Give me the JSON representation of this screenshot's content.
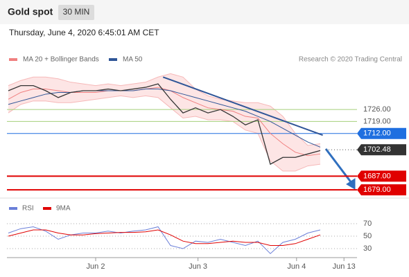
{
  "header": {
    "title": "Gold spot",
    "interval": "30 MIN"
  },
  "chart_data": {
    "type": "line",
    "timestamp": "Thursday, June 4, 2020 6:45:01 AM CET",
    "credit": "Research © 2020 Trading Central",
    "ylim": [
      1675,
      1752
    ],
    "xticks": [
      {
        "value": 7,
        "label": "Jun 2"
      },
      {
        "value": 15.2,
        "label": "Jun 3"
      },
      {
        "value": 23.1,
        "label": "Jun 4"
      },
      {
        "value": 26.9,
        "label": "Jun 13"
      }
    ],
    "price": {
      "color": "#333333",
      "values": [
        1737,
        1740,
        1740,
        1737,
        1733,
        1736,
        1737,
        1737,
        1738,
        1737,
        1738,
        1739,
        1741,
        1732,
        1724,
        1727,
        1724,
        1726,
        1722,
        1717,
        1720,
        1694,
        1698,
        1698,
        1700,
        1702
      ]
    },
    "series": [
      {
        "name": "MA 20 + Bollinger Bands",
        "color": "#f08080",
        "values": [
          1732,
          1736,
          1738,
          1738,
          1737,
          1736,
          1736,
          1736,
          1737,
          1737,
          1737,
          1738,
          1739,
          1737,
          1733,
          1730,
          1727,
          1726,
          1725,
          1722,
          1721,
          1712,
          1706,
          1701,
          1699,
          1700
        ],
        "upper": [
          1740,
          1743,
          1745,
          1745,
          1744,
          1742,
          1741,
          1740,
          1741,
          1740,
          1741,
          1742,
          1745,
          1747,
          1745,
          1738,
          1734,
          1732,
          1731,
          1730,
          1730,
          1728,
          1722,
          1712,
          1705,
          1706
        ],
        "lower": [
          1724,
          1729,
          1731,
          1731,
          1730,
          1730,
          1731,
          1732,
          1733,
          1734,
          1733,
          1734,
          1733,
          1727,
          1721,
          1722,
          1720,
          1720,
          1719,
          1714,
          1712,
          1696,
          1690,
          1690,
          1693,
          1694
        ]
      },
      {
        "name": "MA 50",
        "color": "#2f5597",
        "values": [
          1729,
          1731,
          1733,
          1735,
          1736,
          1736,
          1737,
          1737,
          1737,
          1737,
          1737,
          1738,
          1738,
          1737,
          1735,
          1733,
          1731,
          1729,
          1727,
          1725,
          1722,
          1719,
          1715,
          1711,
          1707,
          1704
        ]
      }
    ],
    "trendline": {
      "x": [
        12.4,
        25.2
      ],
      "values": [
        1745,
        1711
      ],
      "color": "#2f5597"
    },
    "levels": [
      {
        "value": 1726,
        "label": "1726.00",
        "color": "#a5cf7a",
        "style": "line"
      },
      {
        "value": 1719,
        "label": "1719.00",
        "color": "#a5cf7a",
        "style": "line"
      },
      {
        "value": 1712,
        "label": "1712.00",
        "color": "#1f6fe0",
        "style": "tag"
      },
      {
        "value": 1702.48,
        "label": "1702.48",
        "color": "#333333",
        "style": "current"
      },
      {
        "value": 1687,
        "label": "1687.00",
        "color": "#e00000",
        "style": "tag"
      },
      {
        "value": 1679,
        "label": "1679.00",
        "color": "#e00000",
        "style": "tag"
      }
    ],
    "rsi": {
      "ylim": [
        22,
        85
      ],
      "yticks": [
        70,
        50,
        30
      ],
      "series": [
        {
          "name": "RSI",
          "color": "#6a7fd8",
          "values": [
            55,
            62,
            65,
            58,
            45,
            52,
            55,
            55,
            58,
            55,
            58,
            60,
            65,
            35,
            30,
            42,
            40,
            45,
            40,
            35,
            42,
            22,
            40,
            45,
            55,
            60
          ]
        },
        {
          "name": "9MA",
          "color": "#e00000",
          "values": [
            50,
            55,
            60,
            60,
            55,
            52,
            52,
            54,
            55,
            56,
            56,
            57,
            60,
            52,
            42,
            38,
            38,
            40,
            42,
            40,
            40,
            35,
            35,
            38,
            45,
            52
          ]
        }
      ]
    }
  }
}
